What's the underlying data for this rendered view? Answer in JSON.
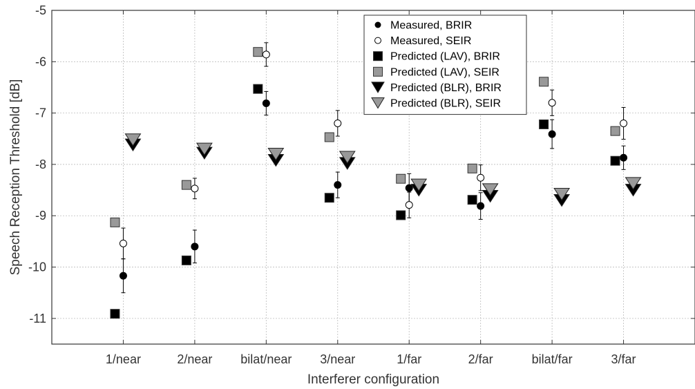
{
  "chart_data": {
    "type": "scatter",
    "title": "",
    "xlabel": "Interferer configuration",
    "ylabel": "Speech Reception Threshold [dB]",
    "categories": [
      "1/near",
      "2/near",
      "bilat/near",
      "3/near",
      "1/far",
      "2/far",
      "bilat/far",
      "3/far"
    ],
    "ylim": [
      -11.5,
      -5
    ],
    "yticks": [
      -11,
      -10,
      -9,
      -8,
      -7,
      -6,
      -5
    ],
    "grid": true,
    "legend_position": "top-right",
    "series": [
      {
        "name": "Measured, BRIR",
        "marker": "filled-circle",
        "color": "#000000",
        "values": [
          -10.17,
          -9.6,
          -6.81,
          -8.4,
          -8.46,
          -8.81,
          -7.41,
          -7.87
        ],
        "error": [
          0.33,
          0.32,
          0.23,
          0.25,
          0.28,
          0.26,
          0.28,
          0.23
        ]
      },
      {
        "name": "Measured, SEIR",
        "marker": "open-circle",
        "color": "#000000",
        "values": [
          -9.54,
          -8.47,
          -5.86,
          -7.2,
          -8.79,
          -8.26,
          -6.8,
          -7.2
        ],
        "error": [
          0.3,
          0.2,
          0.23,
          0.25,
          0.25,
          0.25,
          0.25,
          0.31
        ]
      },
      {
        "name": "Predicted (LAV), BRIR",
        "marker": "square",
        "color": "#000000",
        "values": [
          -10.91,
          -9.87,
          -6.53,
          -8.65,
          -8.99,
          -8.69,
          -7.22,
          -7.93
        ]
      },
      {
        "name": "Predicted (LAV), SEIR",
        "marker": "square",
        "color": "#999999",
        "values": [
          -9.13,
          -8.4,
          -5.81,
          -7.47,
          -8.28,
          -8.08,
          -6.39,
          -7.35
        ]
      },
      {
        "name": "Predicted (BLR), BRIR",
        "marker": "triangle-down",
        "color": "#000000",
        "values": [
          -7.62,
          -7.78,
          -7.92,
          -7.98,
          -8.5,
          -8.62,
          -8.7,
          -8.5
        ]
      },
      {
        "name": "Predicted (BLR), SEIR",
        "marker": "triangle-down",
        "color": "#999999",
        "values": [
          -7.52,
          -7.7,
          -7.8,
          -7.86,
          -8.4,
          -8.49,
          -8.58,
          -8.37
        ]
      }
    ]
  }
}
